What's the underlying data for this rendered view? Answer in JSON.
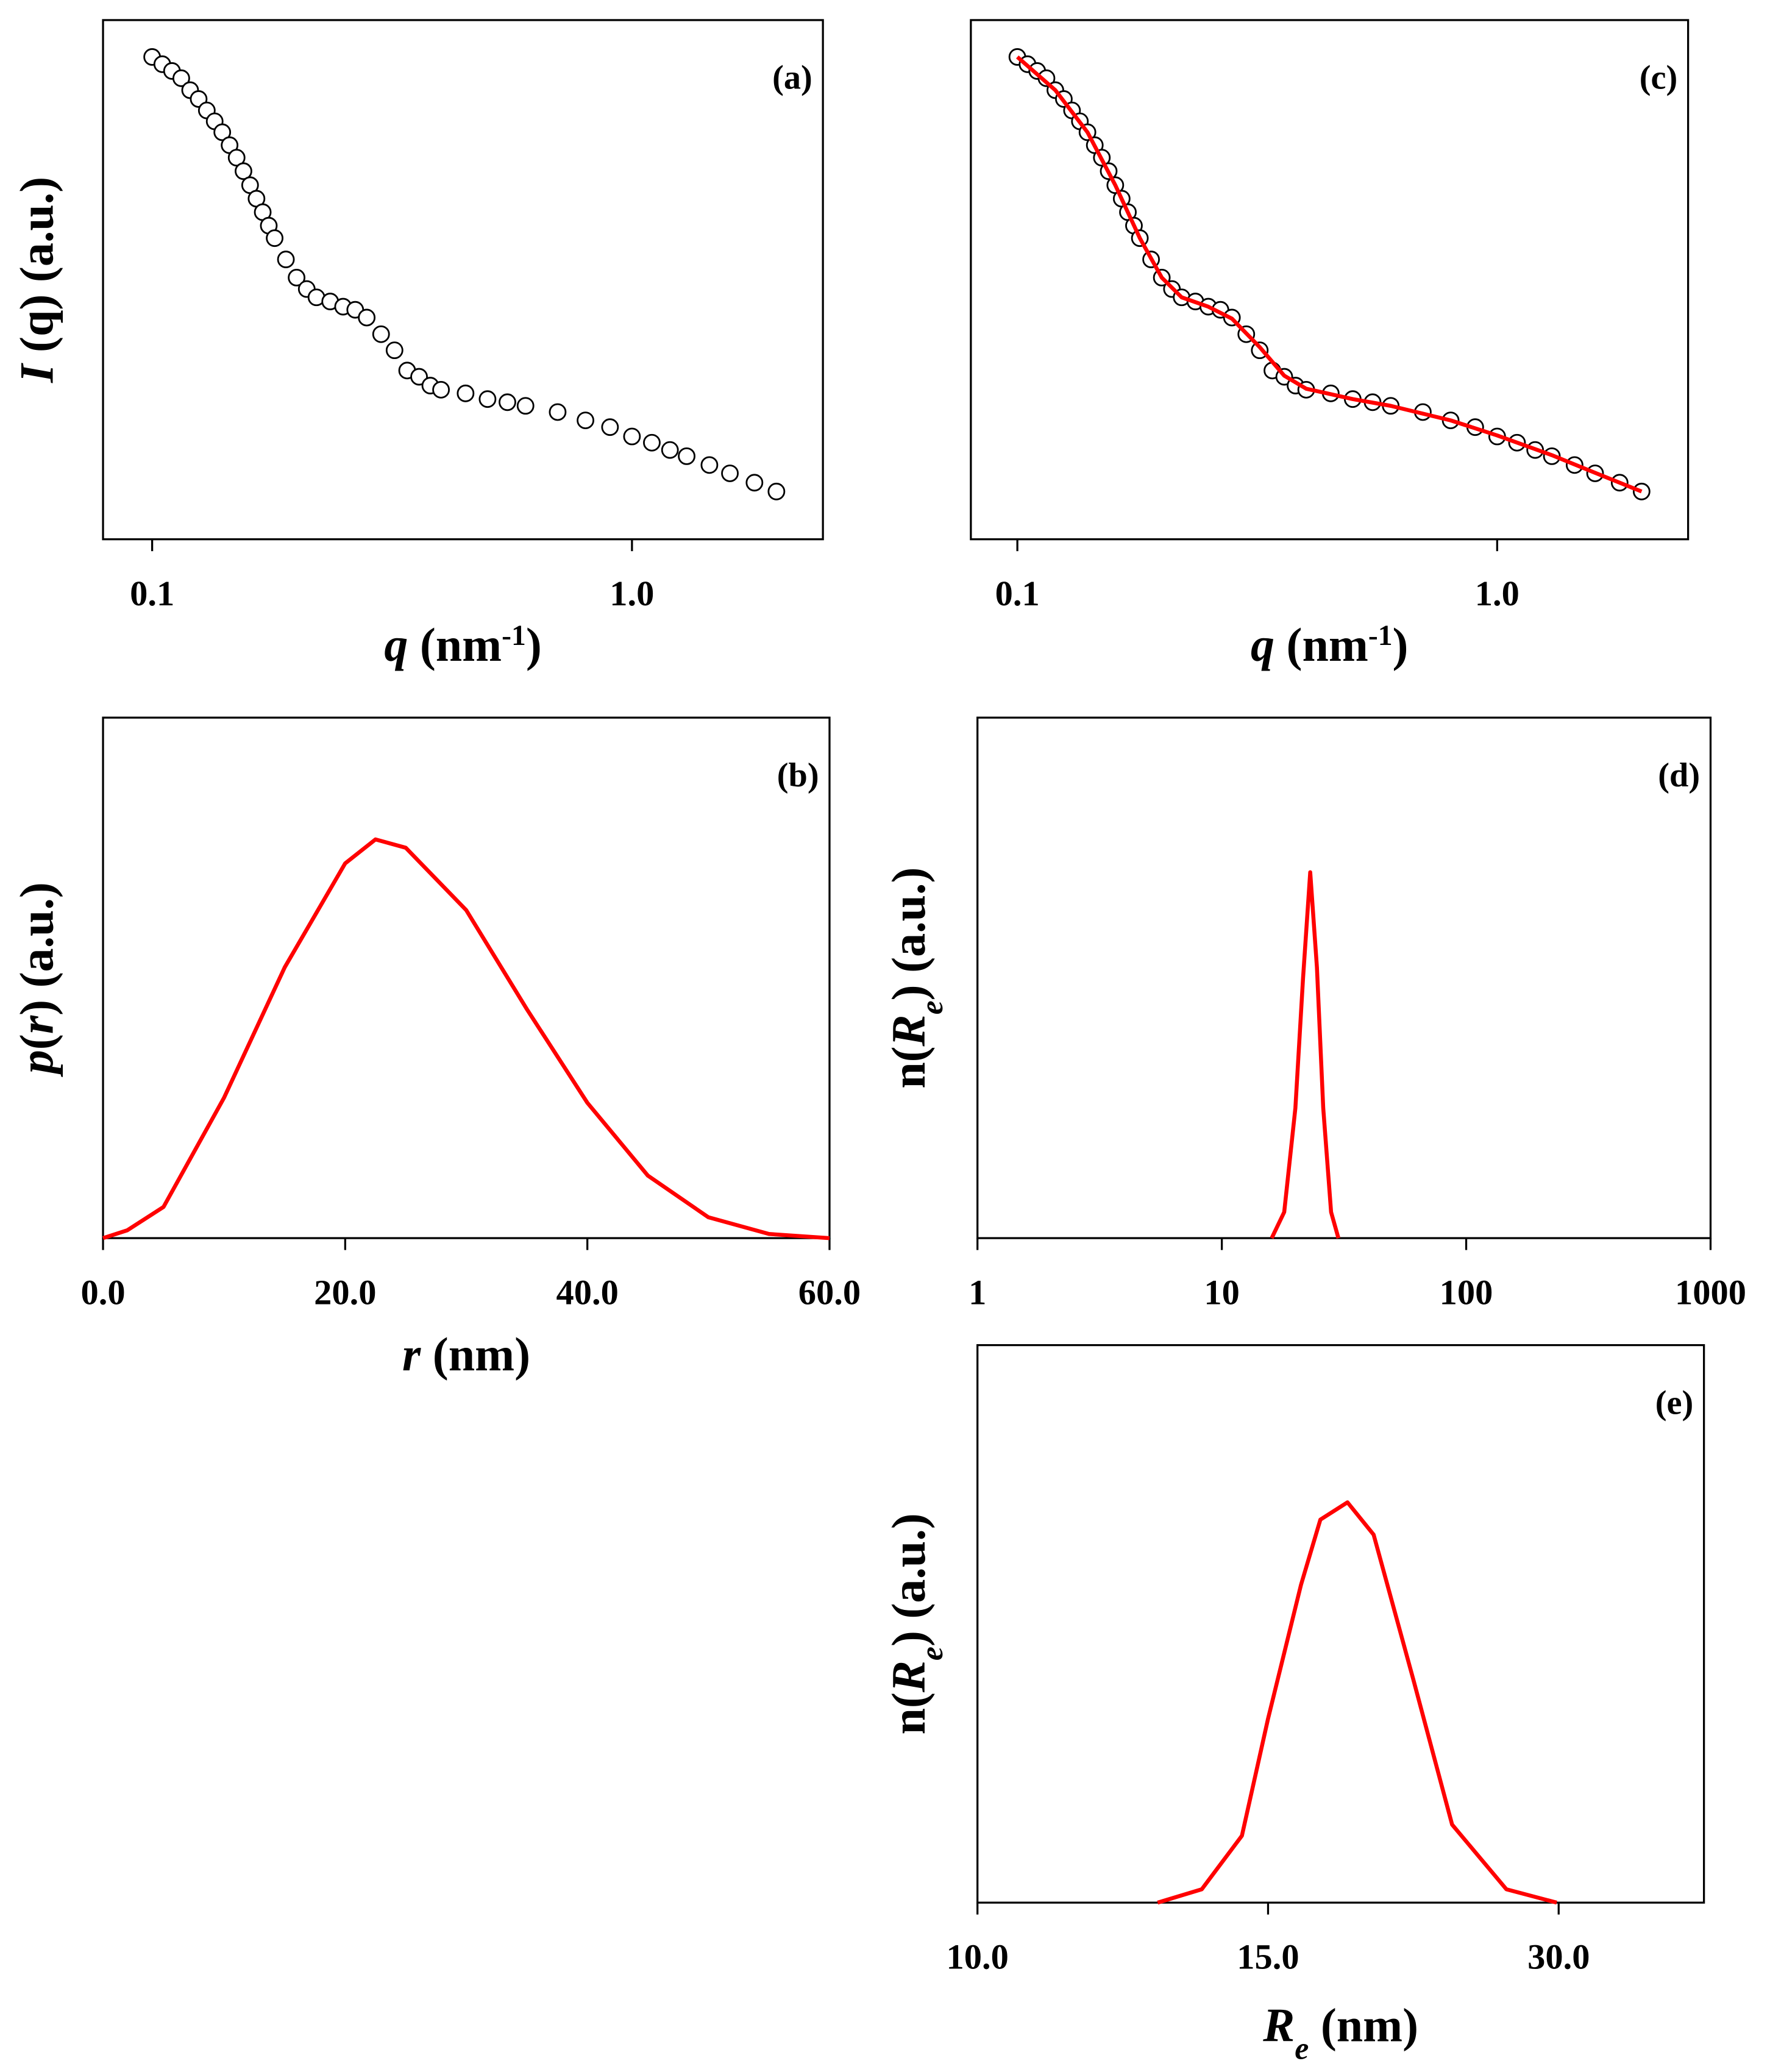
{
  "chart_data": [
    {
      "type": "scatter",
      "panel_label": "(a)",
      "xlog": true,
      "xlim": [
        0.079,
        2.5
      ],
      "ylim": [
        0,
        100
      ],
      "xticks": [
        0.1,
        {
          "value": 1,
          "label": "1.0"
        }
      ],
      "yticks": [],
      "xlabel": [
        {
          "text": "q",
          "italic": true
        },
        {
          "text": "  (nm"
        },
        {
          "text": "-1",
          "sup": true
        },
        {
          "text": ")"
        }
      ],
      "ylabel": [
        {
          "text": "I",
          "italic": true
        },
        {
          "text": " (q)  (a.u.)"
        }
      ],
      "x": [
        0.1,
        0.105,
        0.11,
        0.115,
        0.12,
        0.125,
        0.13,
        0.135,
        0.14,
        0.145,
        0.15,
        0.155,
        0.16,
        0.165,
        0.17,
        0.175,
        0.18,
        0.19,
        0.2,
        0.21,
        0.22,
        0.235,
        0.25,
        0.265,
        0.28,
        0.3,
        0.32,
        0.34,
        0.36,
        0.38,
        0.4,
        0.45,
        0.5,
        0.55,
        0.6,
        0.7,
        0.8,
        0.9,
        1.0,
        1.1,
        1.2,
        1.3,
        1.45,
        1.6,
        1.8,
        2.0
      ],
      "values": [
        92.9,
        91.5,
        90.2,
        88.8,
        86.5,
        84.8,
        82.6,
        80.5,
        78.4,
        75.9,
        73.5,
        70.9,
        68.2,
        65.6,
        63.0,
        60.4,
        58.0,
        53.9,
        50.4,
        48.2,
        46.6,
        45.8,
        44.8,
        44.2,
        42.7,
        39.5,
        36.4,
        32.5,
        31.3,
        29.6,
        28.8,
        28.1,
        27.0,
        26.4,
        25.7,
        24.5,
        22.9,
        21.6,
        19.8,
        18.6,
        17.2,
        16.0,
        14.3,
        12.7,
        10.9,
        9.2
      ]
    },
    {
      "type": "line",
      "panel_label": "(b)",
      "color": "#ff0000",
      "xlim": [
        0,
        60
      ],
      "ylim": [
        0,
        100
      ],
      "xticks": [
        {
          "value": 0,
          "label": "0.0"
        },
        {
          "value": 20,
          "label": "20.0"
        },
        {
          "value": 40,
          "label": "40.0"
        },
        {
          "value": 60,
          "label": "60.0"
        }
      ],
      "yticks": [],
      "xlabel": [
        {
          "text": "r",
          "italic": true
        },
        {
          "text": " (nm)"
        }
      ],
      "ylabel": [
        {
          "text": "p",
          "italic": true
        },
        {
          "text": "("
        },
        {
          "text": "r",
          "italic": true
        },
        {
          "text": ") (a.u.)"
        }
      ],
      "x": [
        0,
        2,
        5,
        10,
        15,
        20,
        22.5,
        25,
        30,
        35,
        40,
        45,
        50,
        55,
        60
      ],
      "values": [
        0,
        1.5,
        6,
        27,
        52,
        72,
        76.6,
        75,
        63,
        44,
        26,
        12,
        4,
        0.8,
        0
      ]
    },
    {
      "type": "scatter",
      "panel_label": "(c)",
      "xlog": true,
      "xlim": [
        0.08,
        2.5
      ],
      "ylim": [
        0,
        100
      ],
      "xticks": [
        0.1,
        {
          "value": 1,
          "label": "1.0"
        }
      ],
      "yticks": [],
      "xlabel": [
        {
          "text": "q",
          "italic": true
        },
        {
          "text": "  (nm"
        },
        {
          "text": "-1",
          "sup": true
        },
        {
          "text": ")"
        }
      ],
      "x": [
        0.1,
        0.105,
        0.11,
        0.115,
        0.12,
        0.125,
        0.13,
        0.135,
        0.14,
        0.145,
        0.15,
        0.155,
        0.16,
        0.165,
        0.17,
        0.175,
        0.18,
        0.19,
        0.2,
        0.21,
        0.22,
        0.235,
        0.25,
        0.265,
        0.28,
        0.3,
        0.32,
        0.34,
        0.36,
        0.38,
        0.4,
        0.45,
        0.5,
        0.55,
        0.6,
        0.7,
        0.8,
        0.9,
        1.0,
        1.1,
        1.2,
        1.3,
        1.45,
        1.6,
        1.8,
        2.0
      ],
      "values": [
        92.9,
        91.5,
        90.2,
        88.8,
        86.5,
        84.8,
        82.6,
        80.5,
        78.4,
        75.9,
        73.5,
        70.9,
        68.2,
        65.6,
        63.0,
        60.4,
        58.0,
        53.9,
        50.4,
        48.2,
        46.6,
        45.8,
        44.8,
        44.2,
        42.7,
        39.5,
        36.4,
        32.5,
        31.3,
        29.6,
        28.8,
        28.1,
        27.0,
        26.4,
        25.7,
        24.5,
        22.9,
        21.6,
        19.8,
        18.6,
        17.2,
        16.0,
        14.3,
        12.7,
        10.9,
        9.2
      ],
      "fit": {
        "color": "#ff0000",
        "x": [
          0.1,
          0.12,
          0.14,
          0.16,
          0.18,
          0.2,
          0.22,
          0.25,
          0.28,
          0.32,
          0.36,
          0.4,
          0.5,
          0.6,
          0.8,
          1.0,
          1.3,
          1.6,
          2.0
        ],
        "values": [
          92.9,
          86.5,
          78.4,
          68.2,
          58,
          50.4,
          46.6,
          44.8,
          42.5,
          37,
          31.5,
          29,
          27,
          25.7,
          22.9,
          20,
          16.2,
          12.8,
          9.2
        ]
      }
    },
    {
      "type": "line",
      "panel_label": "(d)",
      "color": "#ff0000",
      "xlog": true,
      "xlim": [
        1,
        1000
      ],
      "ylim": [
        0,
        100
      ],
      "xticks": [
        1,
        10,
        100,
        1000
      ],
      "yticks": [],
      "ylabel": [
        {
          "text": "n("
        },
        {
          "text": "R",
          "italic": true
        },
        {
          "text": "e",
          "italic": true,
          "sub": true
        },
        {
          "text": ")  (a.u.)"
        }
      ],
      "x": [
        16,
        18,
        20,
        21.5,
        23,
        24.5,
        26,
        28,
        30
      ],
      "values": [
        0,
        5,
        25,
        50,
        70.3,
        52,
        25,
        5,
        0
      ]
    },
    {
      "type": "line",
      "panel_label": "(e)",
      "color": "#ff0000",
      "xscale": "tick-spaced",
      "xlim": [
        10,
        37.5
      ],
      "ylim": [
        0,
        100
      ],
      "xticks": [
        {
          "value": 10,
          "label": "10.0"
        },
        {
          "value": 15,
          "label": "15.0"
        },
        {
          "value": 30,
          "label": "30.0"
        }
      ],
      "yticks": [],
      "xlabel": [
        {
          "text": "R",
          "italic": true
        },
        {
          "text": "e",
          "italic": true,
          "sub": true
        },
        {
          "text": " (nm)"
        }
      ],
      "ylabel": [
        {
          "text": "n("
        },
        {
          "text": "R",
          "italic": true
        },
        {
          "text": "e",
          "italic": true,
          "sub": true
        },
        {
          "text": ")  (a.u.)"
        }
      ],
      "x": [
        13.1,
        13.86,
        14.55,
        15,
        16.7,
        17.7,
        19.1,
        20.45,
        22.5,
        24.5,
        27.3,
        29.9
      ],
      "values": [
        0,
        2.4,
        12,
        33,
        57,
        68.7,
        71.8,
        66,
        40,
        14,
        2.4,
        0
      ]
    }
  ]
}
